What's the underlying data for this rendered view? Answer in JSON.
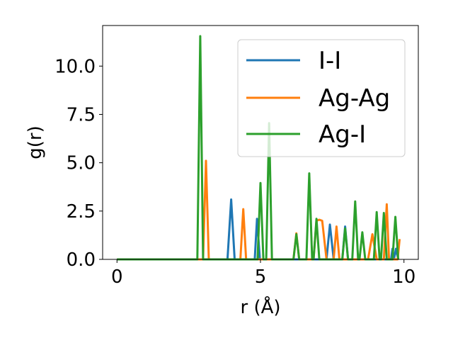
{
  "chart_data": {
    "type": "line",
    "xlabel": "r (Å)",
    "ylabel": "g(r)",
    "xlim": [
      -0.5,
      10.5
    ],
    "ylim": [
      0,
      12.1
    ],
    "xticks": [
      0,
      5,
      10
    ],
    "xtick_labels": [
      "0",
      "5",
      "10"
    ],
    "yticks": [
      0.0,
      2.5,
      5.0,
      7.5,
      10.0
    ],
    "ytick_labels": [
      "0.0",
      "2.5",
      "5.0",
      "7.5",
      "10.0"
    ],
    "grid": false,
    "legend_position": "top-right",
    "series": [
      {
        "name": "I-I",
        "color": "#1f77b4",
        "x": [
          0.0,
          3.85,
          3.98,
          4.1,
          4.8,
          4.88,
          4.98,
          7.3,
          7.42,
          7.55,
          7.85,
          7.95,
          8.05,
          9.55,
          9.6,
          9.65,
          9.72,
          9.8
        ],
        "y": [
          0.0,
          0.0,
          3.1,
          0.0,
          0.0,
          2.1,
          0.0,
          0.0,
          1.8,
          0.0,
          0.0,
          1.7,
          0.0,
          0.0,
          0.55,
          0.0,
          0.55,
          0.0
        ]
      },
      {
        "name": "Ag-Ag",
        "color": "#ff7f0e",
        "x": [
          0.0,
          3.0,
          3.1,
          3.2,
          4.3,
          4.4,
          4.5,
          6.15,
          6.25,
          6.35,
          6.85,
          6.95,
          7.05,
          7.15,
          7.3,
          7.55,
          7.65,
          7.75,
          8.75,
          8.9,
          9.05,
          9.3,
          9.4,
          9.48,
          9.58,
          9.78,
          9.85
        ],
        "y": [
          0.0,
          0.0,
          5.1,
          0.0,
          0.0,
          2.6,
          0.0,
          0.0,
          1.35,
          0.0,
          0.0,
          2.0,
          2.05,
          2.0,
          0.0,
          0.0,
          1.7,
          0.0,
          0.0,
          1.3,
          0.0,
          0.0,
          2.85,
          0.0,
          0.0,
          0.0,
          1.05
        ]
      },
      {
        "name": "Ag-I",
        "color": "#2ca02c",
        "x": [
          0.0,
          2.8,
          2.9,
          3.0,
          4.9,
          5.0,
          5.1,
          5.2,
          5.3,
          5.4,
          6.15,
          6.25,
          6.35,
          6.6,
          6.7,
          6.8,
          6.85,
          6.95,
          7.05,
          7.85,
          7.95,
          8.05,
          8.2,
          8.3,
          8.4,
          8.45,
          8.55,
          8.65,
          8.95,
          9.05,
          9.15,
          9.2,
          9.3,
          9.4,
          9.6,
          9.7,
          9.8
        ],
        "y": [
          0.0,
          0.0,
          11.55,
          0.0,
          0.0,
          3.95,
          0.0,
          0.0,
          7.05,
          0.0,
          0.0,
          1.3,
          0.0,
          0.0,
          4.45,
          0.0,
          0.0,
          2.1,
          0.0,
          0.0,
          1.6,
          0.0,
          0.0,
          3.0,
          0.0,
          0.0,
          1.4,
          0.0,
          0.0,
          2.45,
          0.0,
          0.0,
          2.4,
          0.0,
          0.0,
          2.2,
          0.0
        ]
      }
    ]
  }
}
